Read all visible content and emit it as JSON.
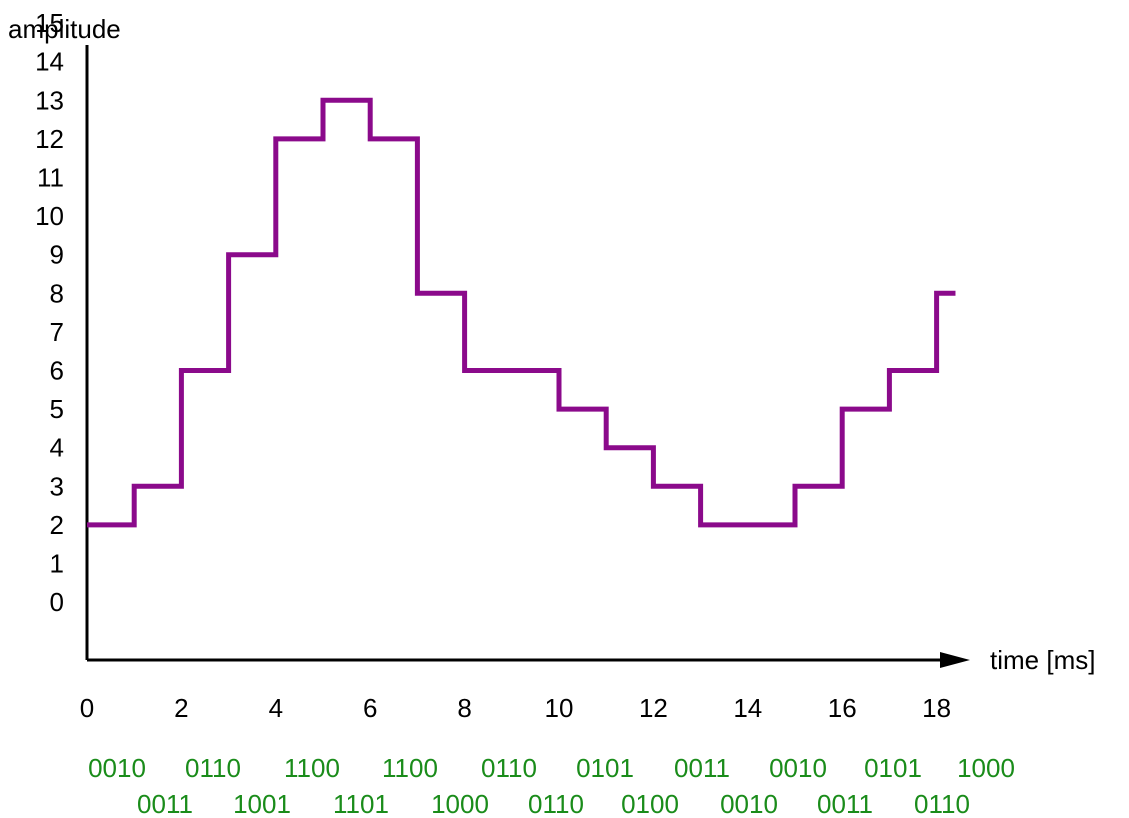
{
  "chart_data": {
    "type": "line",
    "step": true,
    "ylabel": "amplitude",
    "xlabel": "time [ms]",
    "ylim": [
      0,
      15
    ],
    "xlim": [
      0,
      18.5
    ],
    "y_ticks": [
      0,
      1,
      2,
      3,
      4,
      5,
      6,
      7,
      8,
      9,
      10,
      11,
      12,
      13,
      14,
      15
    ],
    "x_ticks": [
      0,
      2,
      4,
      6,
      8,
      10,
      12,
      14,
      16,
      18
    ],
    "series": [
      {
        "x": [
          0,
          1,
          2,
          3,
          4,
          5,
          6,
          7,
          8,
          9,
          10,
          11,
          12,
          13,
          14,
          15,
          16,
          17,
          18,
          18.4
        ],
        "values": [
          2,
          3,
          6,
          9,
          12,
          13,
          12,
          8,
          6,
          6,
          5,
          4,
          3,
          2,
          2,
          3,
          5,
          6,
          8,
          8
        ]
      }
    ],
    "binary_codes_row1": [
      "0010",
      "0110",
      "1100",
      "1100",
      "0110",
      "0101",
      "0011",
      "0010",
      "0101",
      "1000"
    ],
    "binary_codes_row2": [
      "0011",
      "1001",
      "1101",
      "1000",
      "0110",
      "0100",
      "0010",
      "0011",
      "0110"
    ],
    "colors": {
      "series": "#8b0a8b",
      "axis": "#000000",
      "codes": "#1a8c1a"
    },
    "grid": false
  }
}
